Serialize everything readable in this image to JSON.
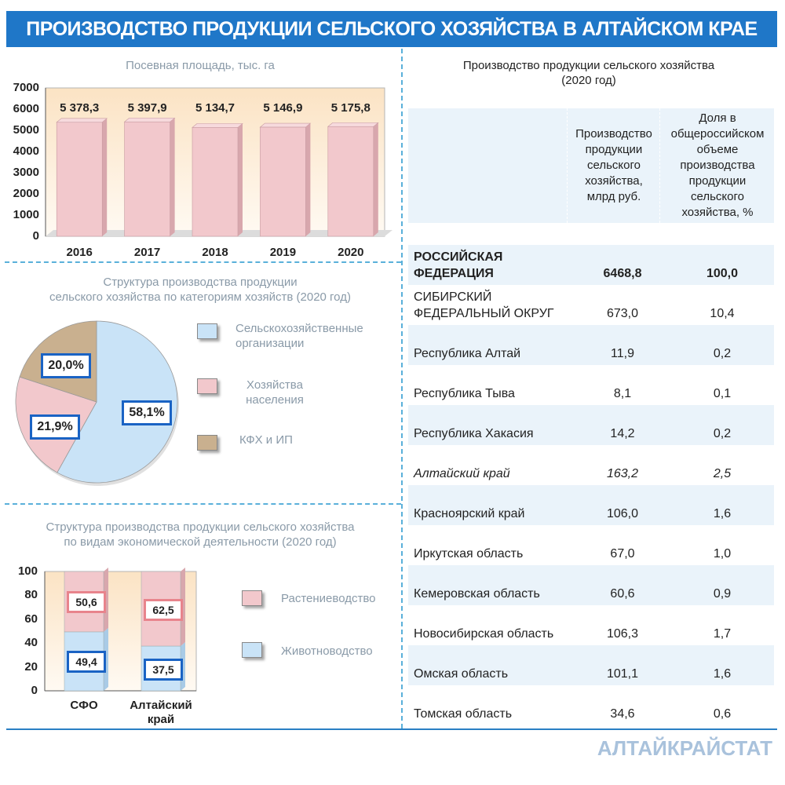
{
  "header": {
    "title": "ПРОИЗВОДСТВО ПРОДУКЦИИ СЕЛЬСКОГО ХОЗЯЙСТВА В АЛТАЙСКОМ КРАЕ"
  },
  "colors": {
    "banner": "#1f77c8",
    "pink": "#f2c8cc",
    "blue": "#c9e3f7",
    "tan": "#c9b08f",
    "label_border": "#1a63c4",
    "crop_border": "#e8848c"
  },
  "chart_data": [
    {
      "type": "bar",
      "title": "Посевная площадь, тыс. га",
      "categories": [
        "2016",
        "2017",
        "2018",
        "2019",
        "2020"
      ],
      "values": [
        5378.3,
        5397.9,
        5134.7,
        5146.9,
        5175.8
      ],
      "value_labels": [
        "5 378,3",
        "5 397,9",
        "5 134,7",
        "5 146,9",
        "5 175,8"
      ],
      "ylim": [
        0,
        7000
      ],
      "yticks": [
        "0",
        "1000",
        "2000",
        "3000",
        "4000",
        "5000",
        "6000",
        "7000"
      ]
    },
    {
      "type": "pie",
      "title": "Структура производства продукции\nсельского хозяйства по категориям хозяйств (2020 год)",
      "labels": [
        "Сельскохозяйственные\nорганизации",
        "Хозяйства\nнаселения",
        "КФХ и ИП"
      ],
      "values": [
        58.1,
        21.9,
        20.0
      ],
      "value_labels": [
        "58,1%",
        "21,9%",
        "20,0%"
      ]
    },
    {
      "type": "bar",
      "stacked": true,
      "title": "Структура производства продукции  сельского хозяйства\nпо видам экономической деятельности (2020 год)",
      "categories": [
        "СФО",
        "Алтайский\nкрай"
      ],
      "series": [
        {
          "name": "Животноводство",
          "values": [
            49.4,
            37.5
          ],
          "value_labels": [
            "49,4",
            "37,5"
          ]
        },
        {
          "name": "Растениеводство",
          "values": [
            50.6,
            62.5
          ],
          "value_labels": [
            "50,6",
            "62,5"
          ]
        }
      ],
      "ylim": [
        0,
        100
      ],
      "yticks": [
        "0",
        "20",
        "40",
        "60",
        "80",
        "100"
      ]
    },
    {
      "type": "table",
      "title": "Производство продукции сельского хозяйства\n(2020 год)",
      "columns": [
        "",
        "Производство\nпродукции\nсельского\nхозяйства,\nмлрд руб.",
        "Доля  в\nобщероссийском\nобъеме\nпроизводства\nпродукции\nсельского\nхозяйства, %"
      ],
      "rows": [
        {
          "name": "РОССИЙСКАЯ\nФЕДЕРАЦИЯ",
          "value": "6468,8",
          "share": "100,0",
          "style": "bold"
        },
        {
          "name": "СИБИРСКИЙ\nФЕДЕРАЛЬНЫЙ ОКРУГ",
          "value": "673,0",
          "share": "10,4",
          "style": "normal"
        },
        {
          "name": "Республика Алтай",
          "value": "11,9",
          "share": "0,2",
          "style": "normal"
        },
        {
          "name": "Республика Тыва",
          "value": "8,1",
          "share": "0,1",
          "style": "normal"
        },
        {
          "name": "Республика Хакасия",
          "value": "14,2",
          "share": "0,2",
          "style": "normal"
        },
        {
          "name": "Алтайский край",
          "value": "163,2",
          "share": "2,5",
          "style": "italic"
        },
        {
          "name": "Красноярский край",
          "value": "106,0",
          "share": "1,6",
          "style": "normal"
        },
        {
          "name": "Иркутская область",
          "value": "67,0",
          "share": "1,0",
          "style": "normal"
        },
        {
          "name": "Кемеровская область",
          "value": "60,6",
          "share": "0,9",
          "style": "normal"
        },
        {
          "name": "Новосибирская область",
          "value": "106,3",
          "share": "1,7",
          "style": "normal"
        },
        {
          "name": "Омская область",
          "value": "101,1",
          "share": "1,6",
          "style": "normal"
        },
        {
          "name": "Томская область",
          "value": "34,6",
          "share": "0,6",
          "style": "normal"
        }
      ]
    }
  ],
  "footer": {
    "brand": "АЛТАЙКРАЙСТАТ"
  }
}
